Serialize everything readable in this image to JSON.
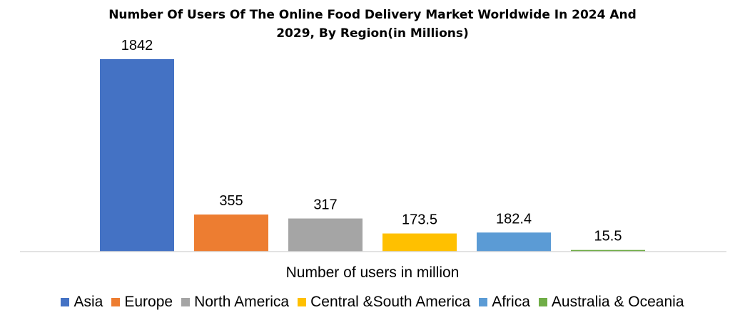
{
  "chart_data": {
    "type": "bar",
    "title_lines": [
      "Number Of Users Of The Online Food Delivery Market Worldwide In 2024 And",
      "2029, By Region(in Millions)"
    ],
    "categories": [
      "Asia",
      "Europe",
      "North America",
      "Central &South America",
      "Africa",
      "Australia & Oceania"
    ],
    "values": [
      1842,
      355,
      317,
      173.5,
      182.4,
      15.5
    ],
    "value_labels": [
      "1842",
      "355",
      "317",
      "173.5",
      "182.4",
      "15.5"
    ],
    "colors": [
      "#4472C4",
      "#ED7D31",
      "#A5A5A5",
      "#FFC000",
      "#5B9BD5",
      "#70AD47"
    ],
    "xlabel": "Number of users in million",
    "ylabel": "",
    "ylim": [
      0,
      1842
    ],
    "grid": false,
    "legend_position": "bottom"
  }
}
